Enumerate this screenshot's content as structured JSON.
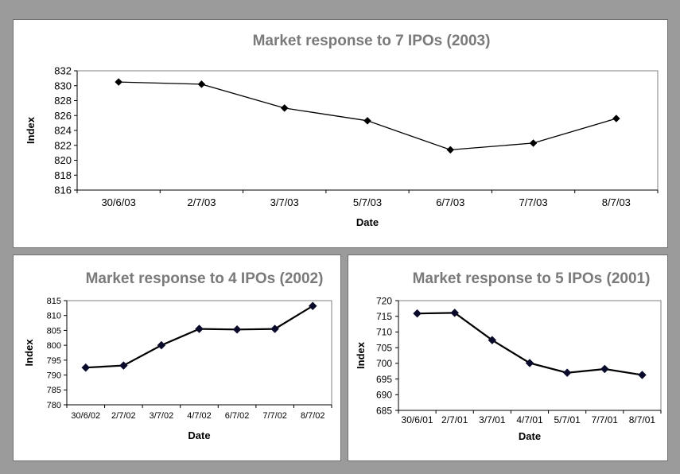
{
  "chart_data": [
    {
      "type": "line",
      "title": "Market response to 7 IPOs (2003)",
      "xlabel": "Date",
      "ylabel": "Index",
      "categories": [
        "30/6/03",
        "2/7/03",
        "3/7/03",
        "5/7/03",
        "6/7/03",
        "7/7/03",
        "8/7/03"
      ],
      "values": [
        830.5,
        830.2,
        827.0,
        825.3,
        821.4,
        822.3,
        825.6
      ],
      "ylim": [
        816,
        832
      ],
      "yticks": [
        816,
        818,
        820,
        822,
        824,
        826,
        828,
        830,
        832
      ],
      "grid": false,
      "legend": "none"
    },
    {
      "type": "line",
      "title": "Market response to 4 IPOs (2002)",
      "xlabel": "Date",
      "ylabel": "Index",
      "categories": [
        "30/6/02",
        "2/7/02",
        "3/7/02",
        "4/7/02",
        "6/7/02",
        "7/7/02",
        "8/7/02"
      ],
      "values": [
        792.5,
        793.2,
        800.0,
        805.5,
        805.3,
        805.5,
        813.2
      ],
      "ylim": [
        780,
        815
      ],
      "yticks": [
        780,
        785,
        790,
        795,
        800,
        805,
        810,
        815
      ],
      "grid": false,
      "legend": "none"
    },
    {
      "type": "line",
      "title": "Market response to 5 IPOs (2001)",
      "xlabel": "Date",
      "ylabel": "Index",
      "categories": [
        "30/6/01",
        "2/7/01",
        "3/7/01",
        "4/7/01",
        "5/7/01",
        "7/7/01",
        "8/7/01"
      ],
      "values": [
        715.9,
        716.1,
        707.4,
        700.1,
        697.0,
        698.2,
        696.3
      ],
      "ylim": [
        685,
        720
      ],
      "yticks": [
        685,
        690,
        695,
        700,
        705,
        710,
        715,
        720
      ],
      "grid": false,
      "legend": "none"
    }
  ],
  "colors": {
    "background": "#9b9b9b",
    "panel": "#ffffff",
    "title": "#7a7a7a",
    "line": "#000000",
    "marker_2003": "#000000",
    "marker_other": "#0a0a2a"
  },
  "markers": "diamond"
}
